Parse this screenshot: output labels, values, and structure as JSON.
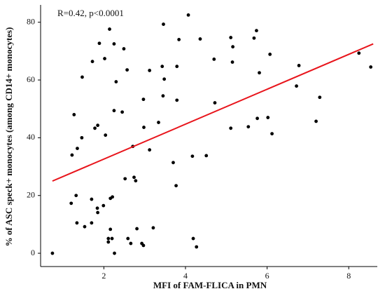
{
  "chart_data": {
    "type": "scatter",
    "annotation": "R=0.42, p<0.0001",
    "x_label": "MFI of FAM-FLICA in PMN",
    "y_label": "% of ASC speck+ monocytes (among CD14+ monocytes)",
    "xlim": [
      0.45,
      8.7
    ],
    "xticks": [
      2,
      4,
      6,
      8
    ],
    "ylim": [
      -4.6,
      86
    ],
    "yticks": [
      0,
      20,
      40,
      60,
      80
    ],
    "grid": false,
    "series": [
      {
        "color": "#000000",
        "x": [
          0.74,
          1.22,
          1.27,
          1.2,
          1.32,
          1.35,
          1.34,
          1.46,
          1.47,
          1.53,
          1.7,
          1.7,
          1.72,
          1.78,
          1.84,
          1.85,
          1.85,
          1.89,
          1.99,
          2.02,
          2.04,
          2.11,
          2.11,
          2.14,
          2.16,
          2.16,
          2.2,
          2.21,
          2.25,
          2.25,
          2.26,
          2.3,
          2.45,
          2.49,
          2.52,
          2.57,
          2.59,
          2.66,
          2.71,
          2.74,
          2.78,
          2.81,
          2.93,
          2.97,
          2.97,
          2.98,
          3.12,
          3.12,
          3.21,
          3.34,
          3.43,
          3.45,
          3.46,
          3.48,
          3.7,
          3.79,
          3.77,
          3.79,
          3.84,
          4.07,
          4.17,
          4.19,
          4.27,
          4.36,
          4.51,
          4.7,
          4.72,
          5.11,
          5.11,
          5.15,
          5.16,
          5.54,
          5.68,
          5.74,
          5.76,
          5.81,
          6.02,
          6.07,
          6.12,
          6.72,
          6.78,
          7.2,
          7.29,
          8.25,
          8.54
        ],
        "y": [
          0,
          34,
          48,
          17.3,
          20,
          36.3,
          10.5,
          40,
          61,
          9.2,
          10.5,
          18.7,
          66.4,
          43.3,
          15.6,
          14.1,
          44.3,
          72.7,
          16.5,
          67.4,
          40.9,
          5.1,
          3.9,
          77.6,
          19,
          8.3,
          5.1,
          19.5,
          72.5,
          49.4,
          0,
          59.4,
          48.9,
          70.8,
          25.8,
          63.5,
          5.1,
          3.4,
          37,
          26.3,
          25.1,
          8.5,
          3.4,
          2.7,
          53.3,
          43.6,
          63.3,
          35.8,
          8.8,
          45.3,
          64.7,
          54.5,
          79.3,
          60.3,
          31.4,
          53,
          23.4,
          64.7,
          74,
          82.5,
          33.6,
          5.1,
          2.2,
          74.2,
          33.8,
          67.2,
          52.1,
          74.7,
          43.3,
          66.2,
          71.5,
          43.8,
          74.5,
          77.1,
          46.7,
          62.5,
          47,
          68.9,
          41.4,
          57.9,
          65,
          45.7,
          54,
          69.3,
          64.5
        ]
      }
    ],
    "fit": {
      "color": "#e8141b",
      "x": [
        0.74,
        8.6
      ],
      "y": [
        25,
        72.5
      ]
    }
  }
}
